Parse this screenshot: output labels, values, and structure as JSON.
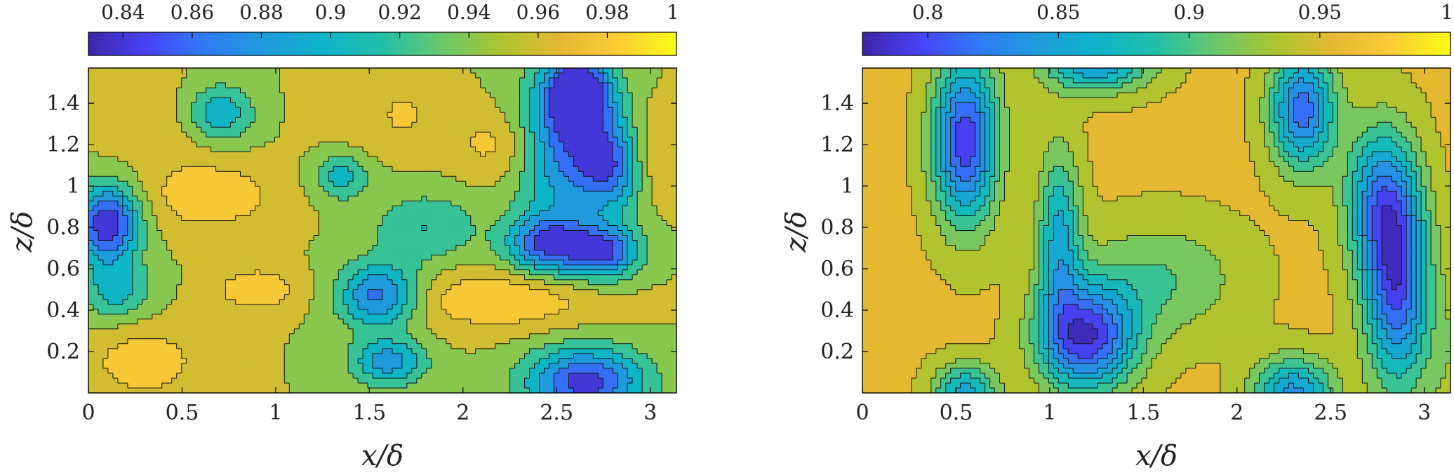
{
  "chart_data": [
    {
      "type": "heatmap",
      "subtype": "filled-contour",
      "colormap": "parula",
      "xlabel": "x/δ",
      "ylabel": "z/δ",
      "xlim": [
        0,
        3.14
      ],
      "ylim": [
        0,
        1.57
      ],
      "xticks": [
        "0",
        "0.5",
        "1",
        "1.5",
        "2",
        "2.5",
        "3"
      ],
      "yticks": [
        "0.2",
        "0.4",
        "0.6",
        "0.8",
        "1",
        "1.2",
        "1.4"
      ],
      "colorbar": {
        "location": "top",
        "range": [
          0.83,
          1.0
        ],
        "ticks": [
          "0.84",
          "0.86",
          "0.88",
          "0.9",
          "0.92",
          "0.94",
          "0.96",
          "0.98",
          "1"
        ]
      },
      "levels": [
        0.83,
        0.85,
        0.87,
        0.89,
        0.91,
        0.93,
        0.95,
        0.97,
        0.99
      ],
      "blobs": [
        {
          "x": 0.1,
          "z": 0.82,
          "v": 0.83,
          "sx": 0.12,
          "sz": 0.13
        },
        {
          "x": 2.62,
          "z": 1.45,
          "v": 0.83,
          "sx": 0.12,
          "sz": 0.12
        },
        {
          "x": 2.55,
          "z": 1.2,
          "v": 0.86,
          "sx": 0.18,
          "sz": 0.25
        },
        {
          "x": 2.8,
          "z": 1.1,
          "v": 0.87,
          "sx": 0.12,
          "sz": 0.15
        },
        {
          "x": 2.45,
          "z": 0.72,
          "v": 0.85,
          "sx": 0.15,
          "sz": 0.1
        },
        {
          "x": 2.75,
          "z": 0.68,
          "v": 0.85,
          "sx": 0.13,
          "sz": 0.09
        },
        {
          "x": 1.55,
          "z": 0.47,
          "v": 0.86,
          "sx": 0.15,
          "sz": 0.11
        },
        {
          "x": 2.65,
          "z": 0.05,
          "v": 0.84,
          "sx": 0.22,
          "sz": 0.12
        },
        {
          "x": 1.6,
          "z": 0.15,
          "v": 0.88,
          "sx": 0.14,
          "sz": 0.08
        },
        {
          "x": 0.7,
          "z": 1.35,
          "v": 0.89,
          "sx": 0.13,
          "sz": 0.1
        },
        {
          "x": 1.35,
          "z": 1.05,
          "v": 0.9,
          "sx": 0.1,
          "sz": 0.08
        },
        {
          "x": 0.15,
          "z": 0.5,
          "v": 0.9,
          "sx": 0.12,
          "sz": 0.1
        },
        {
          "x": 1.5,
          "z": 1.35,
          "v": 0.92,
          "sx": 0.15,
          "sz": 0.1
        },
        {
          "x": 1.8,
          "z": 0.8,
          "v": 0.91,
          "sx": 0.2,
          "sz": 0.12
        },
        {
          "x": 1.55,
          "z": 1.35,
          "v": 0.995,
          "sx": 0.2,
          "sz": 0.12
        },
        {
          "x": 0.65,
          "z": 0.95,
          "v": 0.985,
          "sx": 0.25,
          "sz": 0.12
        },
        {
          "x": 2.2,
          "z": 0.45,
          "v": 0.99,
          "sx": 0.35,
          "sz": 0.1
        },
        {
          "x": 0.3,
          "z": 0.15,
          "v": 0.985,
          "sx": 0.2,
          "sz": 0.12
        },
        {
          "x": 0.9,
          "z": 0.5,
          "v": 0.99,
          "sx": 0.15,
          "sz": 0.07
        },
        {
          "x": 2.2,
          "z": 1.2,
          "v": 0.98,
          "sx": 0.18,
          "sz": 0.12
        },
        {
          "x": 3.0,
          "z": 1.15,
          "v": 0.98,
          "sx": 0.12,
          "sz": 0.15
        },
        {
          "x": 0.4,
          "z": 1.3,
          "v": 0.965,
          "sx": 0.25,
          "sz": 0.15
        }
      ]
    },
    {
      "type": "heatmap",
      "subtype": "filled-contour",
      "colormap": "parula",
      "xlabel": "x/δ",
      "ylabel": "z/δ",
      "xlim": [
        0,
        3.14
      ],
      "ylim": [
        0,
        1.57
      ],
      "xticks": [
        "0",
        "0.5",
        "1",
        "1.5",
        "2",
        "2.5",
        "3"
      ],
      "yticks": [
        "0.2",
        "0.4",
        "0.6",
        "0.8",
        "1",
        "1.2",
        "1.4"
      ],
      "colorbar": {
        "location": "top",
        "range": [
          0.775,
          1.0
        ],
        "ticks": [
          "0.8",
          "0.85",
          "0.9",
          "0.95",
          "1"
        ]
      },
      "levels": [
        0.785,
        0.805,
        0.825,
        0.845,
        0.865,
        0.885,
        0.905,
        0.925,
        0.945,
        0.965,
        0.985
      ],
      "blobs": [
        {
          "x": 0.55,
          "z": 1.22,
          "v": 0.79,
          "sx": 0.12,
          "sz": 0.28
        },
        {
          "x": 1.2,
          "z": 0.27,
          "v": 0.79,
          "sx": 0.18,
          "sz": 0.18
        },
        {
          "x": 1.05,
          "z": 0.75,
          "v": 0.86,
          "sx": 0.08,
          "sz": 0.3
        },
        {
          "x": 1.6,
          "z": 0.55,
          "v": 0.905,
          "sx": 0.3,
          "sz": 0.2
        },
        {
          "x": 2.85,
          "z": 0.55,
          "v": 0.8,
          "sx": 0.12,
          "sz": 0.35
        },
        {
          "x": 2.75,
          "z": 0.95,
          "v": 0.86,
          "sx": 0.13,
          "sz": 0.25
        },
        {
          "x": 2.35,
          "z": 1.37,
          "v": 0.815,
          "sx": 0.12,
          "sz": 0.2
        },
        {
          "x": 1.25,
          "z": 1.6,
          "v": 0.84,
          "sx": 0.2,
          "sz": 0.1
        },
        {
          "x": 2.3,
          "z": 0.0,
          "v": 0.84,
          "sx": 0.15,
          "sz": 0.12
        },
        {
          "x": 0.55,
          "z": 0.0,
          "v": 0.855,
          "sx": 0.12,
          "sz": 0.1
        },
        {
          "x": 3.14,
          "z": 0.15,
          "v": 0.93,
          "sx": 0.15,
          "sz": 0.3
        },
        {
          "x": 0.0,
          "z": 0.1,
          "v": 0.96,
          "sx": 0.08,
          "sz": 0.15
        }
      ]
    }
  ]
}
